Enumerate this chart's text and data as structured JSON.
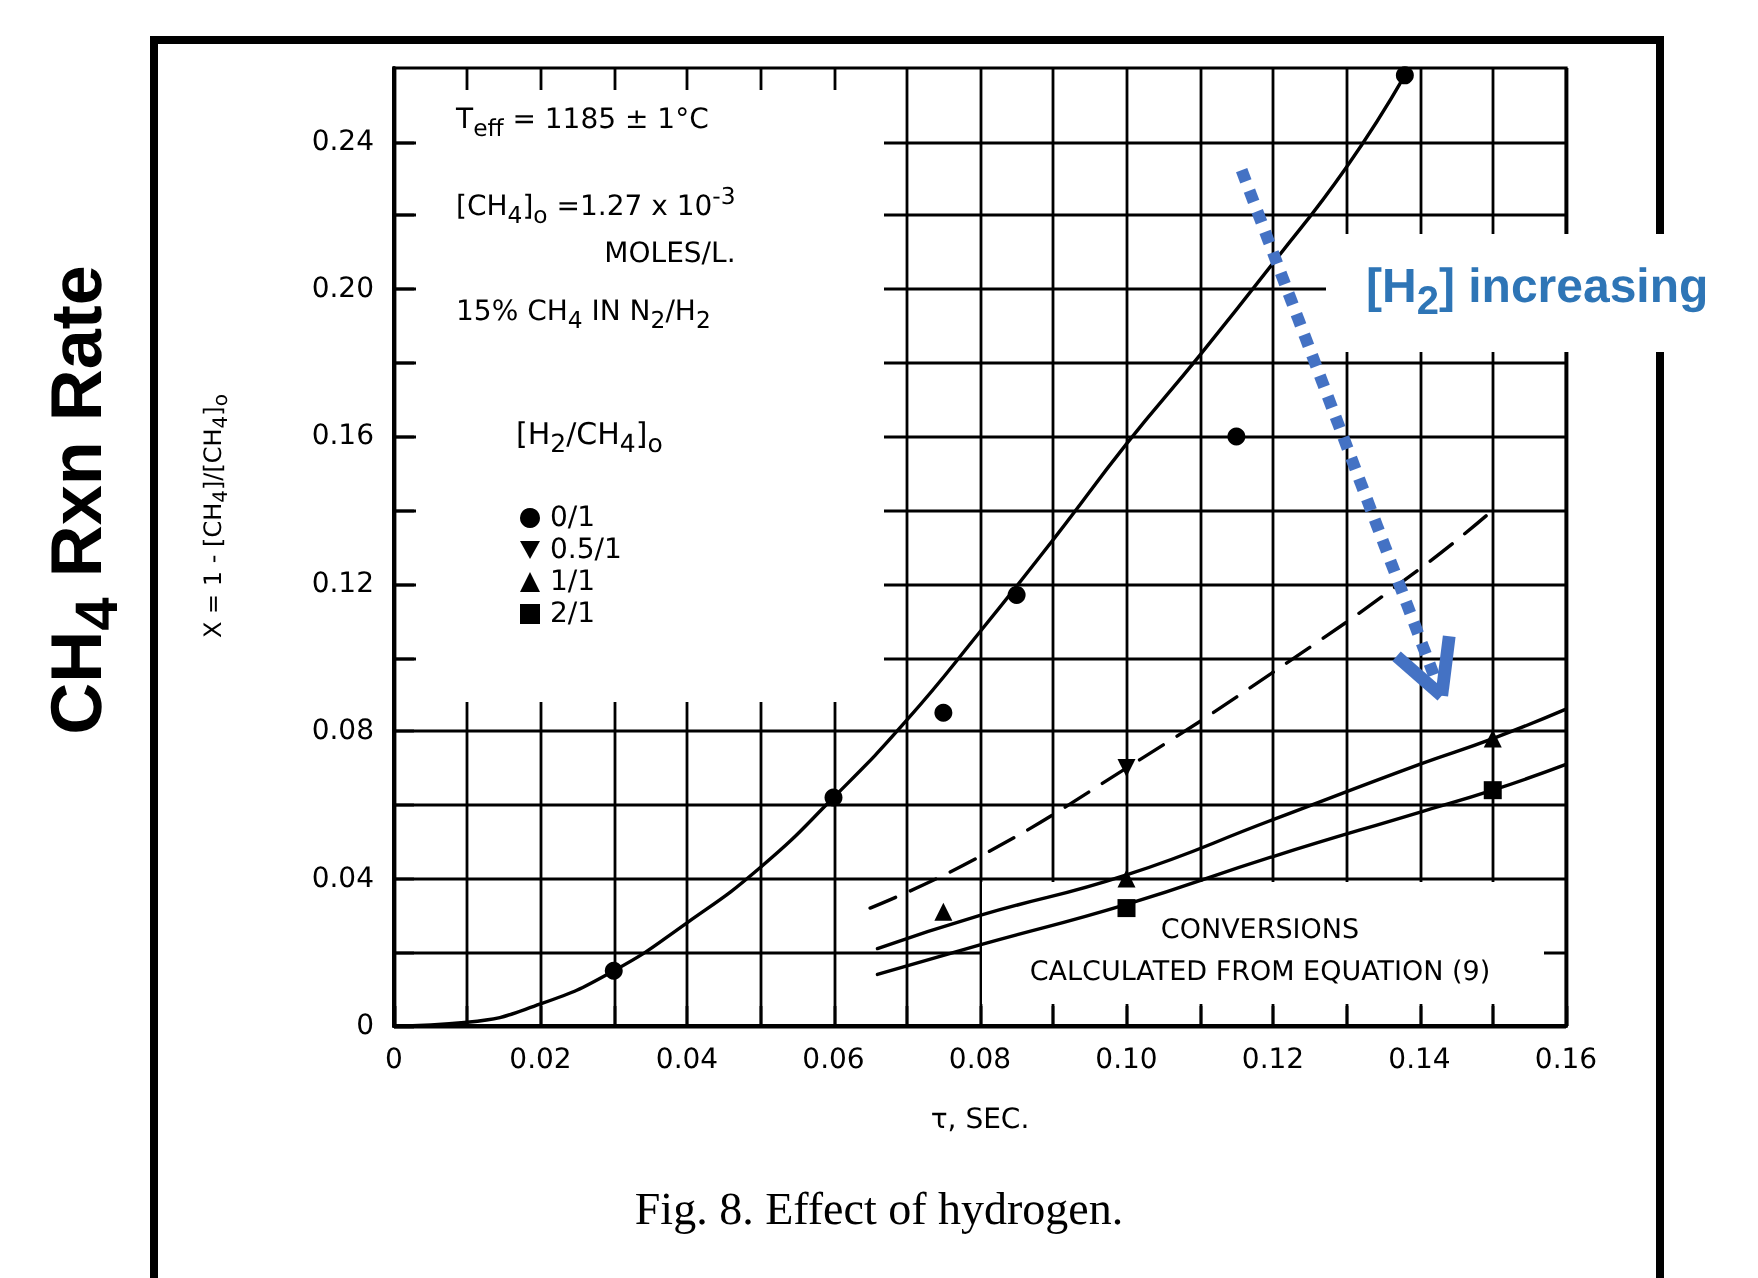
{
  "chart_data": {
    "type": "scatter",
    "title": "Fig. 8. Effect of hydrogen.",
    "xlabel": "τ, SEC.",
    "ylabel": "X = 1 - [CH$_{4}$]/[CH$_{4}$]$_{o}$",
    "legend_title": "[H$_{2}$/CH$_{4}$]$_{o}$",
    "annotations": [
      "CH$_{4}$ Rxn Rate",
      "T$_{eff}$ = 1185 ± 1°C",
      "[CH$_{4}$]$_{o}$ =1.27 x 10$^{-3}$\nMOLES/L.",
      "15% CH$_{4}$ IN N$_{2}$/H$_{2}$",
      "CONVERSIONS\nCALCULATED FROM EQUATION (9)",
      "[H$_{2}$] increasing"
    ],
    "xlim": [
      0,
      0.16
    ],
    "xticks": [
      0,
      {
        "value": 0.01,
        "label": null
      },
      0.02,
      {
        "value": 0.03,
        "label": null
      },
      0.04,
      {
        "value": 0.05,
        "label": null
      },
      0.06,
      {
        "value": 0.07,
        "label": null
      },
      0.08,
      {
        "value": 0.09,
        "label": null
      },
      {
        "value": 0.1,
        "label": "0.10"
      },
      {
        "value": 0.11,
        "label": null
      },
      0.12,
      {
        "value": 0.13,
        "label": null
      },
      0.14,
      {
        "value": 0.15,
        "label": null
      },
      0.16
    ],
    "ylim": [
      0,
      0.26
    ],
    "yticks": [
      0,
      {
        "value": 0.02,
        "label": null
      },
      0.04,
      {
        "value": 0.06,
        "label": null
      },
      0.08,
      {
        "value": 0.1,
        "label": null
      },
      0.12,
      {
        "value": 0.14,
        "label": null
      },
      0.16,
      {
        "value": 0.18,
        "label": null
      },
      {
        "value": 0.2,
        "label": "0.20"
      },
      {
        "value": 0.22,
        "label": null
      },
      0.24
    ],
    "grid": true,
    "legend": "left",
    "series": [
      {
        "name": "0/1",
        "marker": "circle",
        "color": "#000000",
        "x": [
          0.03,
          0.06,
          0.075,
          0.085,
          0.115,
          0.138
        ],
        "values": [
          0.015,
          0.062,
          0.085,
          0.117,
          0.16,
          0.258
        ]
      },
      {
        "name": "0.5/1",
        "marker": "triangle-down",
        "color": "#000000",
        "x": [
          0.1
        ],
        "values": [
          0.07
        ]
      },
      {
        "name": "1/1",
        "marker": "triangle",
        "color": "#000000",
        "x": [
          0.075,
          0.1,
          0.15
        ],
        "values": [
          0.031,
          0.04,
          0.078
        ]
      },
      {
        "name": "2/1",
        "marker": "square",
        "color": "#000000",
        "x": [
          0.1,
          0.15
        ],
        "values": [
          0.032,
          0.064
        ]
      },
      {
        "type": "line",
        "marker": "none",
        "line_style": "solid",
        "color": "#000000",
        "x": [
          0,
          0.01,
          0.02,
          0.03,
          0.04,
          0.05,
          0.06,
          0.07,
          0.08,
          0.09,
          0.1,
          0.11,
          0.12,
          0.13,
          0.138
        ],
        "values": [
          0,
          0.001,
          0.006,
          0.015,
          0.028,
          0.043,
          0.062,
          0.083,
          0.107,
          0.132,
          0.158,
          0.182,
          0.207,
          0.233,
          0.258
        ]
      },
      {
        "type": "line",
        "marker": "none",
        "line_style": "dashed",
        "color": "#000000",
        "x": [
          0.065,
          0.08,
          0.1,
          0.12,
          0.14,
          0.15
        ],
        "values": [
          0.032,
          0.046,
          0.07,
          0.096,
          0.124,
          0.14
        ]
      },
      {
        "type": "line",
        "marker": "none",
        "line_style": "solid",
        "color": "#000000",
        "x": [
          0.066,
          0.08,
          0.1,
          0.12,
          0.14,
          0.15,
          0.16
        ],
        "values": [
          0.021,
          0.03,
          0.041,
          0.056,
          0.071,
          0.078,
          0.086
        ]
      },
      {
        "type": "line",
        "marker": "none",
        "line_style": "solid",
        "color": "#000000",
        "x": [
          0.066,
          0.08,
          0.1,
          0.12,
          0.14,
          0.15,
          0.16
        ],
        "values": [
          0.014,
          0.022,
          0.033,
          0.046,
          0.058,
          0.064,
          0.071
        ]
      }
    ]
  }
}
